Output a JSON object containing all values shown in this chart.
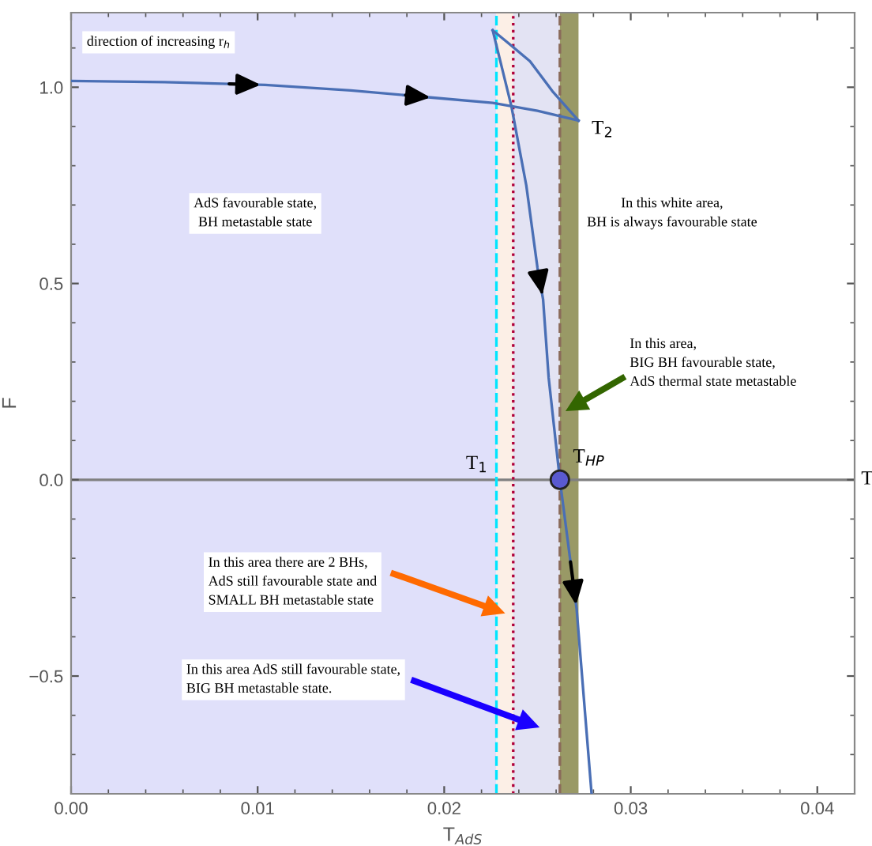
{
  "chart_data": {
    "type": "line",
    "xlabel": "T$_{AdS}$",
    "ylabel": "F",
    "xlim": [
      0,
      0.042
    ],
    "ylim": [
      -0.8,
      1.19
    ],
    "xticks": [
      {
        "value": 0,
        "label": "0.00"
      },
      0.01,
      0.02,
      0.03,
      0.04
    ],
    "yticks": [
      {
        "value": -0.5,
        "label": "−0.5"
      },
      {
        "value": 0,
        "label": "0.0"
      },
      0.5,
      {
        "value": 1,
        "label": "1.0"
      }
    ],
    "grid": false,
    "line_style": "solid",
    "series": [
      {
        "color": "#4a6fb5",
        "x": [
          0,
          0.005,
          0.0104,
          0.015,
          0.0195,
          0.0226,
          0.025,
          0.0272
        ],
        "values": [
          1.016,
          1.013,
          1.006,
          0.992,
          0.973,
          0.96,
          0.94,
          0.915
        ]
      },
      {
        "color": "#4a6fb5",
        "x": [
          0.0272,
          0.0258,
          0.0246,
          0.0235,
          0.0226
        ],
        "values": [
          0.915,
          0.99,
          1.066,
          1.11,
          1.145
        ]
      },
      {
        "color": "#4a6fb5",
        "x": [
          0.0226,
          0.0236,
          0.0244,
          0.025,
          0.0253,
          0.0256,
          0.0262,
          0.0271,
          0.0279
        ],
        "values": [
          1.145,
          0.952,
          0.75,
          0.54,
          0.46,
          0.26,
          0,
          -0.33,
          -0.8
        ]
      },
      {
        "type": "scatter",
        "marker": "circle",
        "color": "#5a5ad0",
        "x": [
          0.0262
        ],
        "values": [
          0
        ]
      }
    ],
    "bands": [
      {
        "axis": "x",
        "from": 0,
        "to": 0.0228,
        "color": "#e0e0fa"
      },
      {
        "axis": "x",
        "from": 0.0228,
        "to": 0.0237,
        "color": "#fcefe6"
      },
      {
        "axis": "x",
        "from": 0.0237,
        "to": 0.0262,
        "color": "#e3e3f3"
      },
      {
        "axis": "x",
        "from": 0.0262,
        "to": 0.0272,
        "color": "#999966"
      }
    ],
    "ref_lines": [
      {
        "axis": "y",
        "value": 0,
        "color": "#808080",
        "line_style": "solid"
      },
      {
        "axis": "x",
        "value": 0.0228,
        "color": "#00e5ff",
        "line_style": "dashed"
      },
      {
        "axis": "x",
        "value": 0.0237,
        "color": "#b0003a",
        "line_style": "dotted"
      },
      {
        "axis": "x",
        "value": 0.0262,
        "color": "#8a6a5a",
        "line_style": "dashed"
      }
    ],
    "annotations": [
      "direction of increasing r$_{h}$",
      "AdS favourable state,\nBH metastable state",
      "In this white area,\nBH is always favourable state",
      "In this area,\nBIG BH favourable state,\nAdS thermal state metastable",
      "In this area there are 2 BHs,\nAdS still favourable state and\nSMALL BH metastable state",
      "In this area AdS still favourable state,\nBIG BH metastable state.",
      {
        "text": "T$_{1}$",
        "x": 0.0228,
        "y": 0
      },
      {
        "text": "T$_{2}$",
        "x": 0.0272,
        "y": 0.915
      },
      {
        "text": "T$_{HP}$",
        "x": 0.0262,
        "y": 0
      },
      {
        "text": "T",
        "x": 0.042,
        "y": 0
      }
    ]
  }
}
